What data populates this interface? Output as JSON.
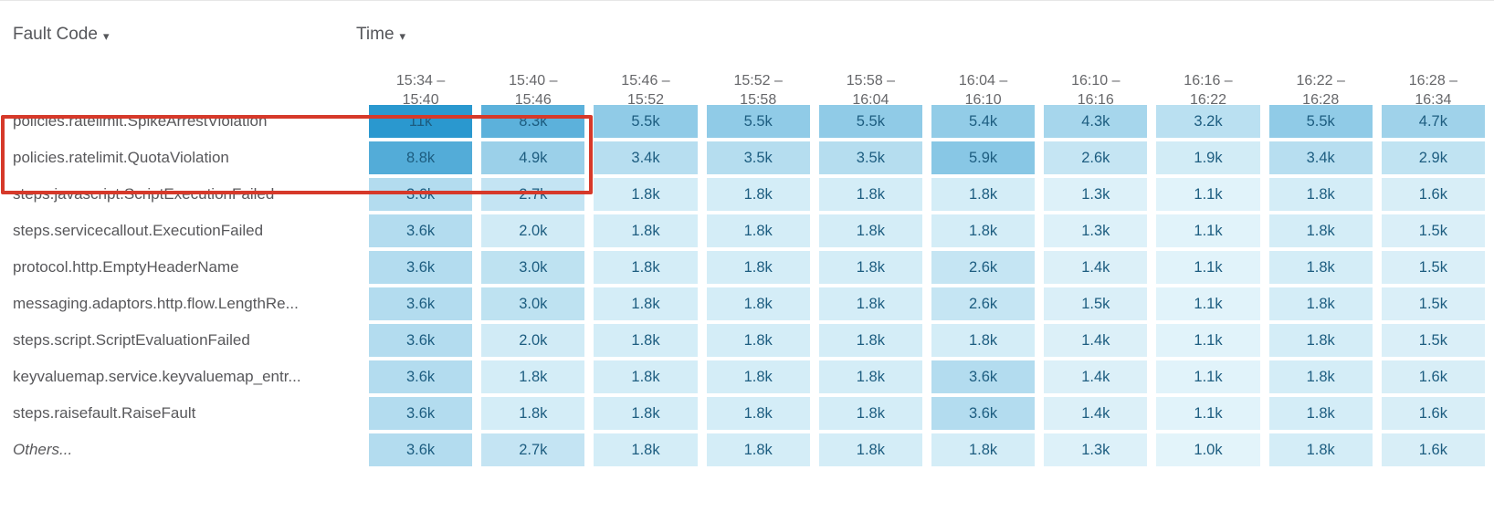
{
  "header": {
    "row_dimension_label": "Fault Code",
    "column_dimension_label": "Time",
    "dropdown_icon": "caret-down-icon"
  },
  "highlight_box": {
    "color": "#d6392a"
  },
  "chart_data": {
    "type": "heatmap",
    "x_dimension": "Time",
    "y_dimension": "Fault Code",
    "legend_position": "none",
    "cell_text_color": "#1d5d80",
    "color_scale": {
      "min_value": 1000,
      "max_value": 11000,
      "min_color": "#e3f4fa",
      "max_color": "#2a98cf"
    },
    "columns": [
      {
        "line1": "15:34 –",
        "line2": "15:40"
      },
      {
        "line1": "15:40 –",
        "line2": "15:46"
      },
      {
        "line1": "15:46 –",
        "line2": "15:52"
      },
      {
        "line1": "15:52 –",
        "line2": "15:58"
      },
      {
        "line1": "15:58 –",
        "line2": "16:04"
      },
      {
        "line1": "16:04 –",
        "line2": "16:10"
      },
      {
        "line1": "16:10 –",
        "line2": "16:16"
      },
      {
        "line1": "16:16 –",
        "line2": "16:22"
      },
      {
        "line1": "16:22 –",
        "line2": "16:28"
      },
      {
        "line1": "16:28 –",
        "line2": "16:34"
      }
    ],
    "rows": [
      {
        "label": "policies.ratelimit.SpikeArrestViolation",
        "italic": false,
        "values": [
          "11k",
          "8.3k",
          "5.5k",
          "5.5k",
          "5.5k",
          "5.4k",
          "4.3k",
          "3.2k",
          "5.5k",
          "4.7k"
        ],
        "numeric": [
          11000,
          8300,
          5500,
          5500,
          5500,
          5400,
          4300,
          3200,
          5500,
          4700
        ]
      },
      {
        "label": "policies.ratelimit.QuotaViolation",
        "italic": false,
        "values": [
          "8.8k",
          "4.9k",
          "3.4k",
          "3.5k",
          "3.5k",
          "5.9k",
          "2.6k",
          "1.9k",
          "3.4k",
          "2.9k"
        ],
        "numeric": [
          8800,
          4900,
          3400,
          3500,
          3500,
          5900,
          2600,
          1900,
          3400,
          2900
        ]
      },
      {
        "label": "steps.javascript.ScriptExecutionFailed",
        "italic": false,
        "values": [
          "3.6k",
          "2.7k",
          "1.8k",
          "1.8k",
          "1.8k",
          "1.8k",
          "1.3k",
          "1.1k",
          "1.8k",
          "1.6k"
        ],
        "numeric": [
          3600,
          2700,
          1800,
          1800,
          1800,
          1800,
          1300,
          1100,
          1800,
          1600
        ]
      },
      {
        "label": "steps.servicecallout.ExecutionFailed",
        "italic": false,
        "values": [
          "3.6k",
          "2.0k",
          "1.8k",
          "1.8k",
          "1.8k",
          "1.8k",
          "1.3k",
          "1.1k",
          "1.8k",
          "1.5k"
        ],
        "numeric": [
          3600,
          2000,
          1800,
          1800,
          1800,
          1800,
          1300,
          1100,
          1800,
          1500
        ]
      },
      {
        "label": "protocol.http.EmptyHeaderName",
        "italic": false,
        "values": [
          "3.6k",
          "3.0k",
          "1.8k",
          "1.8k",
          "1.8k",
          "2.6k",
          "1.4k",
          "1.1k",
          "1.8k",
          "1.5k"
        ],
        "numeric": [
          3600,
          3000,
          1800,
          1800,
          1800,
          2600,
          1400,
          1100,
          1800,
          1500
        ]
      },
      {
        "label": "messaging.adaptors.http.flow.LengthRe...",
        "italic": false,
        "values": [
          "3.6k",
          "3.0k",
          "1.8k",
          "1.8k",
          "1.8k",
          "2.6k",
          "1.5k",
          "1.1k",
          "1.8k",
          "1.5k"
        ],
        "numeric": [
          3600,
          3000,
          1800,
          1800,
          1800,
          2600,
          1500,
          1100,
          1800,
          1500
        ]
      },
      {
        "label": "steps.script.ScriptEvaluationFailed",
        "italic": false,
        "values": [
          "3.6k",
          "2.0k",
          "1.8k",
          "1.8k",
          "1.8k",
          "1.8k",
          "1.4k",
          "1.1k",
          "1.8k",
          "1.5k"
        ],
        "numeric": [
          3600,
          2000,
          1800,
          1800,
          1800,
          1800,
          1400,
          1100,
          1800,
          1500
        ]
      },
      {
        "label": "keyvaluemap.service.keyvaluemap_entr...",
        "italic": false,
        "values": [
          "3.6k",
          "1.8k",
          "1.8k",
          "1.8k",
          "1.8k",
          "3.6k",
          "1.4k",
          "1.1k",
          "1.8k",
          "1.6k"
        ],
        "numeric": [
          3600,
          1800,
          1800,
          1800,
          1800,
          3600,
          1400,
          1100,
          1800,
          1600
        ]
      },
      {
        "label": "steps.raisefault.RaiseFault",
        "italic": false,
        "values": [
          "3.6k",
          "1.8k",
          "1.8k",
          "1.8k",
          "1.8k",
          "3.6k",
          "1.4k",
          "1.1k",
          "1.8k",
          "1.6k"
        ],
        "numeric": [
          3600,
          1800,
          1800,
          1800,
          1800,
          3600,
          1400,
          1100,
          1800,
          1600
        ]
      },
      {
        "label": "Others...",
        "italic": true,
        "values": [
          "3.6k",
          "2.7k",
          "1.8k",
          "1.8k",
          "1.8k",
          "1.8k",
          "1.3k",
          "1.0k",
          "1.8k",
          "1.6k"
        ],
        "numeric": [
          3600,
          2700,
          1800,
          1800,
          1800,
          1800,
          1300,
          1000,
          1800,
          1600
        ]
      }
    ]
  }
}
